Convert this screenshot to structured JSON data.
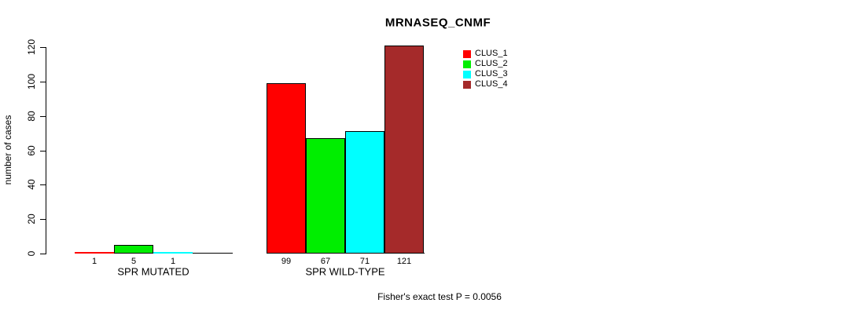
{
  "title": "MRNASEQ_CNMF",
  "footer": "Fisher's exact test P = 0.0056",
  "chart_data": {
    "type": "bar",
    "title": "MRNASEQ_CNMF",
    "xlabel": "",
    "ylabel": "number of cases",
    "ylim": [
      0,
      120
    ],
    "yticks": [
      0,
      20,
      40,
      60,
      80,
      100,
      120
    ],
    "grid": false,
    "legend_position": "top-right-inside",
    "categories": [
      "SPR MUTATED",
      "SPR WILD-TYPE"
    ],
    "series": [
      {
        "name": "CLUS_1",
        "color": "#ff0000",
        "values": [
          1,
          99
        ]
      },
      {
        "name": "CLUS_2",
        "color": "#00ee00",
        "values": [
          5,
          67
        ]
      },
      {
        "name": "CLUS_3",
        "color": "#00ffff",
        "values": [
          1,
          71
        ]
      },
      {
        "name": "CLUS_4",
        "color": "#a52a2a",
        "values": [
          0,
          121
        ]
      }
    ],
    "value_labels": [
      [
        "1",
        "5",
        "1",
        ""
      ],
      [
        "99",
        "67",
        "71",
        "121"
      ]
    ],
    "annotation": "Fisher's exact test P = 0.0056"
  }
}
